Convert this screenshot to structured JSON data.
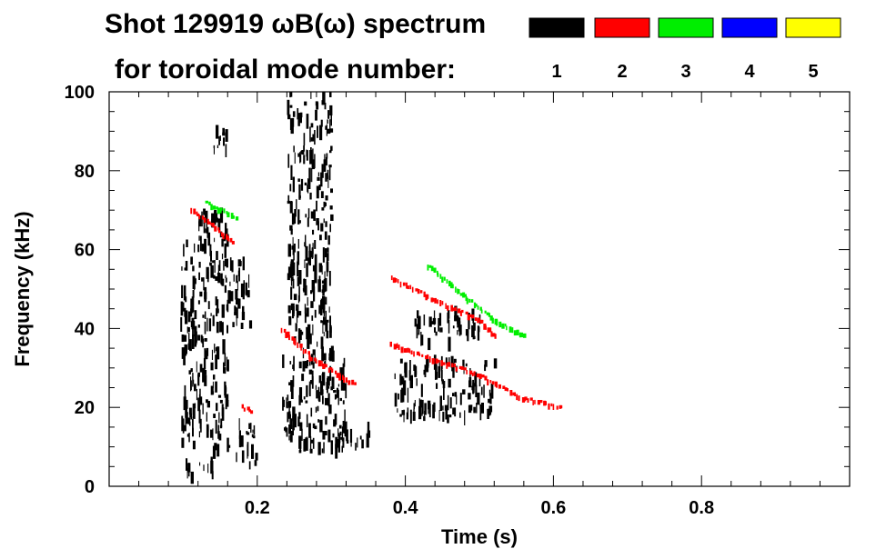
{
  "chart_data": {
    "type": "spectrogram",
    "title_line1": "Shot 129919 ωB(ω) spectrum",
    "title_line2": "for toroidal mode number:",
    "xlabel": "Time (s)",
    "ylabel": "Frequency (kHz)",
    "xlim": [
      0.0,
      1.0
    ],
    "ylim": [
      0,
      100
    ],
    "x_ticks": [
      {
        "value": 0.2,
        "label": "0.2"
      },
      {
        "value": 0.4,
        "label": "0.4"
      },
      {
        "value": 0.6,
        "label": "0.6"
      },
      {
        "value": 0.8,
        "label": "0.8"
      }
    ],
    "y_ticks": [
      {
        "value": 0,
        "label": "0"
      },
      {
        "value": 20,
        "label": "20"
      },
      {
        "value": 40,
        "label": "40"
      },
      {
        "value": 60,
        "label": "60"
      },
      {
        "value": 80,
        "label": "80"
      },
      {
        "value": 100,
        "label": "100"
      }
    ],
    "legend": [
      {
        "mode": "1",
        "color": "#000000"
      },
      {
        "mode": "2",
        "color": "#ff0000"
      },
      {
        "mode": "3",
        "color": "#00ee00"
      },
      {
        "mode": "4",
        "color": "#0000ff"
      },
      {
        "mode": "5",
        "color": "#ffff00"
      }
    ],
    "regions": [
      {
        "mode": 1,
        "t0": 0.095,
        "t1": 0.12,
        "f0": 10,
        "f1": 62
      },
      {
        "mode": 1,
        "t0": 0.12,
        "t1": 0.16,
        "f0": 8,
        "f1": 70
      },
      {
        "mode": 1,
        "t0": 0.16,
        "t1": 0.19,
        "f0": 40,
        "f1": 58
      },
      {
        "mode": 1,
        "t0": 0.1,
        "t1": 0.14,
        "f0": 2,
        "f1": 6
      },
      {
        "mode": 1,
        "t0": 0.17,
        "t1": 0.2,
        "f0": 5,
        "f1": 16
      },
      {
        "mode": 1,
        "t0": 0.14,
        "t1": 0.16,
        "f0": 85,
        "f1": 90
      },
      {
        "mode": 1,
        "t0": 0.232,
        "t1": 0.32,
        "f0": 8,
        "f1": 34
      },
      {
        "mode": 1,
        "t0": 0.24,
        "t1": 0.3,
        "f0": 36,
        "f1": 100
      },
      {
        "mode": 1,
        "t0": 0.3,
        "t1": 0.35,
        "f0": 10,
        "f1": 16
      },
      {
        "mode": 1,
        "t0": 0.385,
        "t1": 0.52,
        "f0": 17,
        "f1": 32
      },
      {
        "mode": 1,
        "t0": 0.41,
        "t1": 0.5,
        "f0": 36,
        "f1": 44
      }
    ],
    "mode_lines": [
      {
        "mode": 2,
        "points": [
          [
            0.232,
            40
          ],
          [
            0.27,
            33
          ],
          [
            0.31,
            28
          ],
          [
            0.33,
            26
          ]
        ]
      },
      {
        "mode": 2,
        "points": [
          [
            0.38,
            53
          ],
          [
            0.44,
            47
          ],
          [
            0.5,
            42
          ],
          [
            0.52,
            38
          ]
        ]
      },
      {
        "mode": 2,
        "points": [
          [
            0.38,
            36
          ],
          [
            0.44,
            32
          ],
          [
            0.5,
            28
          ],
          [
            0.56,
            22
          ],
          [
            0.61,
            20
          ]
        ]
      },
      {
        "mode": 2,
        "points": [
          [
            0.11,
            70
          ],
          [
            0.14,
            66
          ],
          [
            0.165,
            62
          ]
        ]
      },
      {
        "mode": 2,
        "points": [
          [
            0.18,
            20
          ],
          [
            0.19,
            19
          ]
        ]
      },
      {
        "mode": 3,
        "points": [
          [
            0.43,
            56
          ],
          [
            0.48,
            48
          ],
          [
            0.52,
            42
          ],
          [
            0.56,
            38
          ]
        ]
      },
      {
        "mode": 3,
        "points": [
          [
            0.13,
            72
          ],
          [
            0.15,
            70
          ],
          [
            0.17,
            68
          ]
        ]
      }
    ]
  }
}
